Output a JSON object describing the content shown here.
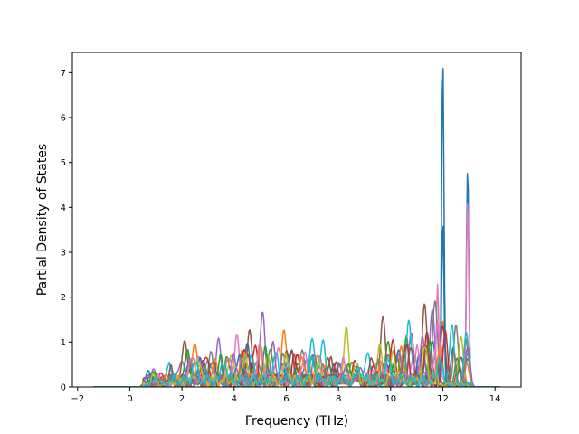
{
  "chart_data": {
    "type": "line",
    "title": "",
    "xlabel": "Frequency (THz)",
    "ylabel": "Partial Density of States",
    "xlim": [
      -2.2,
      15.0
    ],
    "ylim": [
      0,
      7.45
    ],
    "xticks": [
      -2,
      0,
      2,
      4,
      6,
      8,
      10,
      12,
      14
    ],
    "yticks": [
      0,
      1,
      2,
      3,
      4,
      5,
      6,
      7
    ],
    "xtick_labels": [
      "−2",
      "0",
      "2",
      "4",
      "6",
      "8",
      "10",
      "12",
      "14"
    ],
    "ytick_labels": [
      "0",
      "1",
      "2",
      "3",
      "4",
      "5",
      "6",
      "7"
    ],
    "grid": false,
    "legend": "none",
    "x_range": [
      -1.4,
      14.2
    ],
    "series_count": 20,
    "series": [
      {
        "color": "#1f77b4",
        "peaks": [
          [
            0.7,
            0.35
          ],
          [
            2.3,
            0.55
          ],
          [
            4.5,
            0.7
          ],
          [
            6.2,
            0.6
          ],
          [
            8.0,
            0.45
          ],
          [
            10.3,
            0.7
          ],
          [
            11.6,
            0.9
          ],
          [
            12.0,
            7.2
          ],
          [
            12.4,
            0.8
          ],
          [
            12.95,
            4.8
          ]
        ]
      },
      {
        "color": "#ff7f0e",
        "peaks": [
          [
            0.8,
            0.2
          ],
          [
            2.5,
            0.85
          ],
          [
            4.3,
            0.75
          ],
          [
            5.9,
            1.15
          ],
          [
            7.2,
            0.55
          ],
          [
            9.5,
            0.55
          ],
          [
            11.2,
            0.85
          ],
          [
            12.0,
            1.4
          ],
          [
            12.9,
            0.9
          ]
        ]
      },
      {
        "color": "#2ca02c",
        "peaks": [
          [
            1.0,
            0.25
          ],
          [
            2.2,
            0.8
          ],
          [
            3.7,
            0.6
          ],
          [
            5.4,
            0.6
          ],
          [
            7.0,
            0.7
          ],
          [
            8.5,
            0.5
          ],
          [
            9.9,
            0.9
          ],
          [
            10.6,
            1.0
          ],
          [
            11.9,
            0.7
          ],
          [
            12.95,
            0.6
          ]
        ]
      },
      {
        "color": "#d62728",
        "peaks": [
          [
            1.2,
            0.2
          ],
          [
            2.8,
            0.55
          ],
          [
            4.4,
            0.65
          ],
          [
            6.4,
            0.55
          ],
          [
            8.6,
            0.4
          ],
          [
            10.1,
            0.85
          ],
          [
            11.4,
            1.1
          ],
          [
            12.0,
            1.3
          ],
          [
            12.6,
            0.5
          ]
        ]
      },
      {
        "color": "#9467bd",
        "peaks": [
          [
            0.9,
            0.3
          ],
          [
            2.0,
            0.45
          ],
          [
            3.4,
            0.95
          ],
          [
            5.1,
            1.5
          ],
          [
            6.8,
            0.45
          ],
          [
            8.3,
            0.35
          ],
          [
            10.8,
            1.0
          ],
          [
            11.6,
            1.55
          ],
          [
            12.95,
            0.7
          ]
        ]
      },
      {
        "color": "#8c564b",
        "peaks": [
          [
            0.6,
            0.15
          ],
          [
            2.1,
            1.0
          ],
          [
            4.6,
            1.15
          ],
          [
            6.0,
            0.55
          ],
          [
            7.6,
            0.5
          ],
          [
            9.7,
            1.35
          ],
          [
            11.3,
            1.65
          ],
          [
            12.05,
            0.9
          ],
          [
            12.7,
            0.6
          ]
        ]
      },
      {
        "color": "#e377c2",
        "peaks": [
          [
            1.1,
            0.2
          ],
          [
            2.6,
            0.6
          ],
          [
            4.1,
            1.05
          ],
          [
            5.7,
            0.85
          ],
          [
            7.3,
            0.5
          ],
          [
            9.2,
            0.45
          ],
          [
            10.9,
            0.75
          ],
          [
            11.8,
            2.15
          ],
          [
            12.95,
            4.1
          ]
        ]
      },
      {
        "color": "#7f7f7f",
        "peaks": [
          [
            1.3,
            0.25
          ],
          [
            3.1,
            0.55
          ],
          [
            4.9,
            0.45
          ],
          [
            6.6,
            0.7
          ],
          [
            8.1,
            0.35
          ],
          [
            9.9,
            0.6
          ],
          [
            11.7,
            1.85
          ],
          [
            12.5,
            1.3
          ],
          [
            12.9,
            1.0
          ]
        ]
      },
      {
        "color": "#bcbd22",
        "peaks": [
          [
            1.0,
            0.2
          ],
          [
            2.4,
            0.65
          ],
          [
            3.9,
            0.7
          ],
          [
            5.3,
            0.55
          ],
          [
            6.9,
            0.45
          ],
          [
            8.3,
            1.2
          ],
          [
            9.6,
            0.75
          ],
          [
            10.5,
            0.65
          ],
          [
            12.7,
            1.1
          ]
        ]
      },
      {
        "color": "#17becf",
        "peaks": [
          [
            1.5,
            0.45
          ],
          [
            3.0,
            0.5
          ],
          [
            4.7,
            0.55
          ],
          [
            6.1,
            0.45
          ],
          [
            7.0,
            1.05
          ],
          [
            7.4,
            0.85
          ],
          [
            9.1,
            0.7
          ],
          [
            10.7,
            1.3
          ],
          [
            12.35,
            1.3
          ],
          [
            12.9,
            1.1
          ]
        ]
      },
      {
        "color": "#1f77b4",
        "peaks": [
          [
            0.8,
            0.2
          ],
          [
            2.7,
            0.45
          ],
          [
            4.2,
            0.55
          ],
          [
            5.8,
            0.45
          ],
          [
            7.8,
            0.35
          ],
          [
            9.8,
            0.5
          ],
          [
            11.1,
            0.6
          ],
          [
            12.0,
            3.6
          ]
        ]
      },
      {
        "color": "#ff7f0e",
        "peaks": [
          [
            1.4,
            0.2
          ],
          [
            3.3,
            0.5
          ],
          [
            5.0,
            0.65
          ],
          [
            6.6,
            0.55
          ],
          [
            7.5,
            0.3
          ],
          [
            9.6,
            0.45
          ],
          [
            10.4,
            0.7
          ],
          [
            11.9,
            0.9
          ],
          [
            12.9,
            0.45
          ]
        ]
      },
      {
        "color": "#2ca02c",
        "peaks": [
          [
            0.9,
            0.3
          ],
          [
            2.2,
            0.6
          ],
          [
            3.5,
            0.5
          ],
          [
            5.2,
            0.65
          ],
          [
            6.5,
            0.4
          ],
          [
            8.4,
            0.4
          ],
          [
            10.2,
            0.65
          ],
          [
            11.5,
            0.8
          ],
          [
            12.55,
            0.6
          ]
        ]
      },
      {
        "color": "#d62728",
        "peaks": [
          [
            1.2,
            0.15
          ],
          [
            2.9,
            0.6
          ],
          [
            4.8,
            0.75
          ],
          [
            6.3,
            0.55
          ],
          [
            7.9,
            0.4
          ],
          [
            9.4,
            0.35
          ],
          [
            10.6,
            0.9
          ],
          [
            12.1,
            1.15
          ]
        ]
      },
      {
        "color": "#9467bd",
        "peaks": [
          [
            0.7,
            0.2
          ],
          [
            2.3,
            0.45
          ],
          [
            4.0,
            0.6
          ],
          [
            5.5,
            0.75
          ],
          [
            7.1,
            0.5
          ],
          [
            8.9,
            0.35
          ],
          [
            10.3,
            0.55
          ],
          [
            11.2,
            0.95
          ],
          [
            12.95,
            0.8
          ]
        ]
      },
      {
        "color": "#8c564b",
        "peaks": [
          [
            1.6,
            0.25
          ],
          [
            3.2,
            0.5
          ],
          [
            4.5,
            0.5
          ],
          [
            6.2,
            0.65
          ],
          [
            7.7,
            0.45
          ],
          [
            9.3,
            0.5
          ],
          [
            10.8,
            0.75
          ],
          [
            11.4,
            0.8
          ]
        ]
      },
      {
        "color": "#e377c2",
        "peaks": [
          [
            1.1,
            0.2
          ],
          [
            2.4,
            0.55
          ],
          [
            3.8,
            0.5
          ],
          [
            5.0,
            0.95
          ],
          [
            6.7,
            0.55
          ],
          [
            8.2,
            0.4
          ],
          [
            9.8,
            0.4
          ],
          [
            11.0,
            0.7
          ],
          [
            11.8,
            1.3
          ]
        ]
      },
      {
        "color": "#7f7f7f",
        "peaks": [
          [
            1.3,
            0.15
          ],
          [
            2.8,
            0.45
          ],
          [
            4.3,
            0.45
          ],
          [
            5.9,
            0.55
          ],
          [
            7.4,
            0.35
          ],
          [
            9.5,
            0.4
          ],
          [
            10.5,
            0.55
          ],
          [
            12.4,
            0.7
          ]
        ]
      },
      {
        "color": "#bcbd22",
        "peaks": [
          [
            0.9,
            0.2
          ],
          [
            2.6,
            0.5
          ],
          [
            4.4,
            0.6
          ],
          [
            6.0,
            0.55
          ],
          [
            7.2,
            0.4
          ],
          [
            8.7,
            0.35
          ],
          [
            10.1,
            0.6
          ],
          [
            11.3,
            0.75
          ]
        ]
      },
      {
        "color": "#17becf",
        "peaks": [
          [
            1.0,
            0.15
          ],
          [
            2.5,
            0.4
          ],
          [
            3.6,
            0.45
          ],
          [
            5.6,
            0.6
          ],
          [
            7.0,
            0.5
          ],
          [
            8.8,
            0.3
          ],
          [
            9.9,
            0.45
          ],
          [
            11.9,
            0.6
          ]
        ]
      }
    ]
  }
}
